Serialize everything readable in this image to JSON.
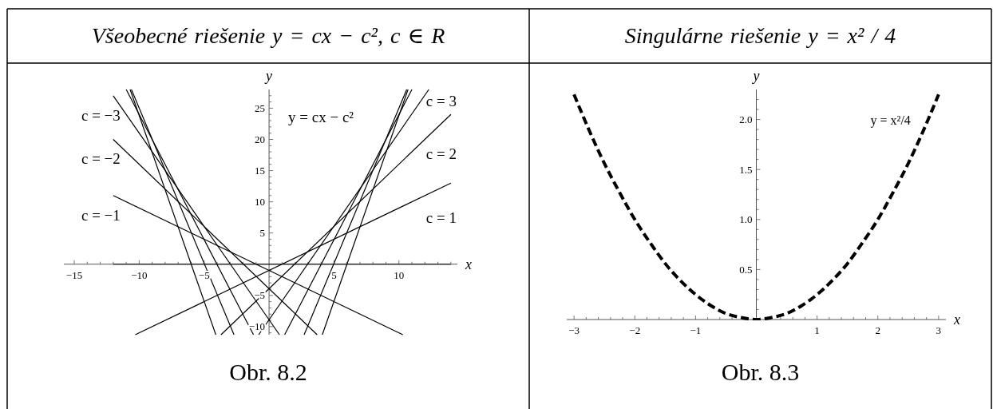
{
  "chart_data": [
    {
      "type": "line",
      "title": "Všeobecné riešenie y = cx − c², c ∈ R",
      "xlabel": "x",
      "ylabel": "y",
      "annotations": [
        "y = cx − c²",
        "Obr. 8.2"
      ],
      "xlim": [
        -15.8,
        14.5
      ],
      "ylim": [
        -11.3,
        28
      ],
      "xticks": [
        -15,
        {
          "value": -14,
          "label": null
        },
        {
          "value": -13,
          "label": null
        },
        {
          "value": -12,
          "label": null
        },
        {
          "value": -11,
          "label": null
        },
        -10,
        {
          "value": -9,
          "label": null
        },
        {
          "value": -8,
          "label": null
        },
        {
          "value": -7,
          "label": null
        },
        {
          "value": -6,
          "label": null
        },
        -5,
        {
          "value": -4,
          "label": null
        },
        {
          "value": -3,
          "label": null
        },
        {
          "value": -2,
          "label": null
        },
        {
          "value": -1,
          "label": null
        },
        {
          "value": 1,
          "label": null
        },
        {
          "value": 2,
          "label": null
        },
        {
          "value": 3,
          "label": null
        },
        {
          "value": 4,
          "label": null
        },
        5,
        {
          "value": 6,
          "label": null
        },
        {
          "value": 7,
          "label": null
        },
        {
          "value": 8,
          "label": null
        },
        {
          "value": 9,
          "label": null
        },
        10,
        {
          "value": 11,
          "label": null
        },
        {
          "value": 12,
          "label": null
        },
        {
          "value": 13,
          "label": null
        },
        {
          "value": 14,
          "label": null
        }
      ],
      "yticks": [
        {
          "value": -11,
          "label": null
        },
        -10,
        {
          "value": -9,
          "label": null
        },
        {
          "value": -8,
          "label": null
        },
        {
          "value": -7,
          "label": null
        },
        {
          "value": -6,
          "label": null
        },
        -5,
        {
          "value": -4,
          "label": null
        },
        {
          "value": -3,
          "label": null
        },
        {
          "value": -2,
          "label": null
        },
        {
          "value": -1,
          "label": null
        },
        {
          "value": 1,
          "label": null
        },
        {
          "value": 2,
          "label": null
        },
        {
          "value": 3,
          "label": null
        },
        {
          "value": 4,
          "label": null
        },
        5,
        {
          "value": 6,
          "label": null
        },
        {
          "value": 7,
          "label": null
        },
        {
          "value": 8,
          "label": null
        },
        {
          "value": 9,
          "label": null
        },
        10,
        {
          "value": 11,
          "label": null
        },
        {
          "value": 12,
          "label": null
        },
        {
          "value": 13,
          "label": null
        },
        {
          "value": 14,
          "label": null
        },
        15,
        {
          "value": 16,
          "label": null
        },
        {
          "value": 17,
          "label": null
        },
        {
          "value": 18,
          "label": null
        },
        {
          "value": 19,
          "label": null
        },
        20,
        {
          "value": 21,
          "label": null
        },
        {
          "value": 22,
          "label": null
        },
        {
          "value": 23,
          "label": null
        },
        {
          "value": 24,
          "label": null
        },
        25,
        {
          "value": 26,
          "label": null
        },
        {
          "value": 27,
          "label": null
        }
      ],
      "series": [
        {
          "color": "#000000",
          "x": [
            -10.7,
            -4.1
          ],
          "values": [
            28,
            -11.3
          ]
        },
        {
          "color": "#000000",
          "x": [
            -10.6,
            -2.7
          ],
          "values": [
            28,
            -11.3
          ]
        },
        {
          "color": "#000000",
          "x": [
            -11,
            -1.2
          ],
          "values": [
            28,
            -11.3
          ]
        },
        {
          "name": "c = −3",
          "color": "#000000",
          "x": [
            -12,
            0.8
          ],
          "values": [
            27,
            -11.3
          ]
        },
        {
          "name": "c = −2",
          "color": "#000000",
          "x": [
            -12,
            3.7
          ],
          "values": [
            20,
            -11.3
          ]
        },
        {
          "name": "c = −1",
          "color": "#000000",
          "x": [
            -12,
            10.3
          ],
          "values": [
            11,
            -11.3
          ]
        },
        {
          "color": "#000000",
          "x": [
            -12,
            14
          ],
          "values": [
            0,
            0
          ]
        },
        {
          "name": "c = 1",
          "color": "#000000",
          "x": [
            -10.3,
            14
          ],
          "values": [
            -11.3,
            13
          ]
        },
        {
          "name": "c = 2",
          "color": "#000000",
          "x": [
            -3.7,
            14
          ],
          "values": [
            -11.3,
            24
          ]
        },
        {
          "name": "c = 3",
          "color": "#000000",
          "x": [
            -0.8,
            12.3
          ],
          "values": [
            -11.3,
            28
          ]
        },
        {
          "color": "#000000",
          "x": [
            1.2,
            11
          ],
          "values": [
            -11.3,
            28
          ]
        },
        {
          "color": "#000000",
          "x": [
            2.7,
            10.6
          ],
          "values": [
            -11.3,
            28
          ]
        },
        {
          "color": "#000000",
          "x": [
            4.1,
            10.7
          ],
          "values": [
            -11.3,
            28
          ]
        }
      ]
    },
    {
      "type": "line",
      "title": "Singulárne riešenie y = x² / 4",
      "xlabel": "x",
      "ylabel": "y",
      "annotations": [
        "Obr. 8.3"
      ],
      "line_style": "dashed",
      "xlim": [
        -3.12,
        3.12
      ],
      "ylim": [
        0,
        2.3
      ],
      "xticks": [
        -3,
        {
          "value": -2.8,
          "label": null
        },
        {
          "value": -2.6,
          "label": null
        },
        {
          "value": -2.4,
          "label": null
        },
        {
          "value": -2.2,
          "label": null
        },
        -2,
        {
          "value": -1.8,
          "label": null
        },
        {
          "value": -1.6,
          "label": null
        },
        {
          "value": -1.4,
          "label": null
        },
        {
          "value": -1.2,
          "label": null
        },
        -1,
        {
          "value": -0.8,
          "label": null
        },
        {
          "value": -0.6,
          "label": null
        },
        {
          "value": -0.4,
          "label": null
        },
        {
          "value": -0.2,
          "label": null
        },
        {
          "value": 0.2,
          "label": null
        },
        {
          "value": 0.4,
          "label": null
        },
        {
          "value": 0.6,
          "label": null
        },
        {
          "value": 0.8,
          "label": null
        },
        1,
        {
          "value": 1.2,
          "label": null
        },
        {
          "value": 1.4,
          "label": null
        },
        {
          "value": 1.6,
          "label": null
        },
        {
          "value": 1.8,
          "label": null
        },
        2,
        {
          "value": 2.2,
          "label": null
        },
        {
          "value": 2.4,
          "label": null
        },
        {
          "value": 2.6,
          "label": null
        },
        {
          "value": 2.8,
          "label": null
        },
        3
      ],
      "yticks": [
        {
          "value": 0.1,
          "label": null
        },
        {
          "value": 0.2,
          "label": null
        },
        {
          "value": 0.3,
          "label": null
        },
        {
          "value": 0.4,
          "label": null
        },
        0.5,
        {
          "value": 0.6,
          "label": null
        },
        {
          "value": 0.7,
          "label": null
        },
        {
          "value": 0.8,
          "label": null
        },
        {
          "value": 0.9,
          "label": null
        },
        {
          "value": 1,
          "label": "1.0"
        },
        {
          "value": 1.1,
          "label": null
        },
        {
          "value": 1.2,
          "label": null
        },
        {
          "value": 1.3,
          "label": null
        },
        {
          "value": 1.4,
          "label": null
        },
        1.5,
        {
          "value": 1.6,
          "label": null
        },
        {
          "value": 1.7,
          "label": null
        },
        {
          "value": 1.8,
          "label": null
        },
        {
          "value": 1.9,
          "label": null
        },
        {
          "value": 2,
          "label": "2.0"
        },
        {
          "value": 2.1,
          "label": null
        },
        {
          "value": 2.2,
          "label": null
        }
      ],
      "x": [
        -3,
        -2.75,
        -2.5,
        -2.25,
        -2,
        -1.75,
        -1.5,
        -1.25,
        -1,
        -0.75,
        -0.5,
        -0.25,
        0,
        0.25,
        0.5,
        0.75,
        1,
        1.25,
        1.5,
        1.75,
        2,
        2.25,
        2.5,
        2.75,
        3
      ],
      "series": [
        {
          "name": "y = x²/4",
          "color": "#000000",
          "values": [
            2.25,
            1.89,
            1.56,
            1.27,
            1,
            0.77,
            0.56,
            0.39,
            0.25,
            0.14,
            0.06,
            0.02,
            0,
            0.02,
            0.06,
            0.14,
            0.25,
            0.39,
            0.56,
            0.77,
            1,
            1.27,
            1.56,
            1.89,
            2.25
          ]
        }
      ]
    }
  ]
}
